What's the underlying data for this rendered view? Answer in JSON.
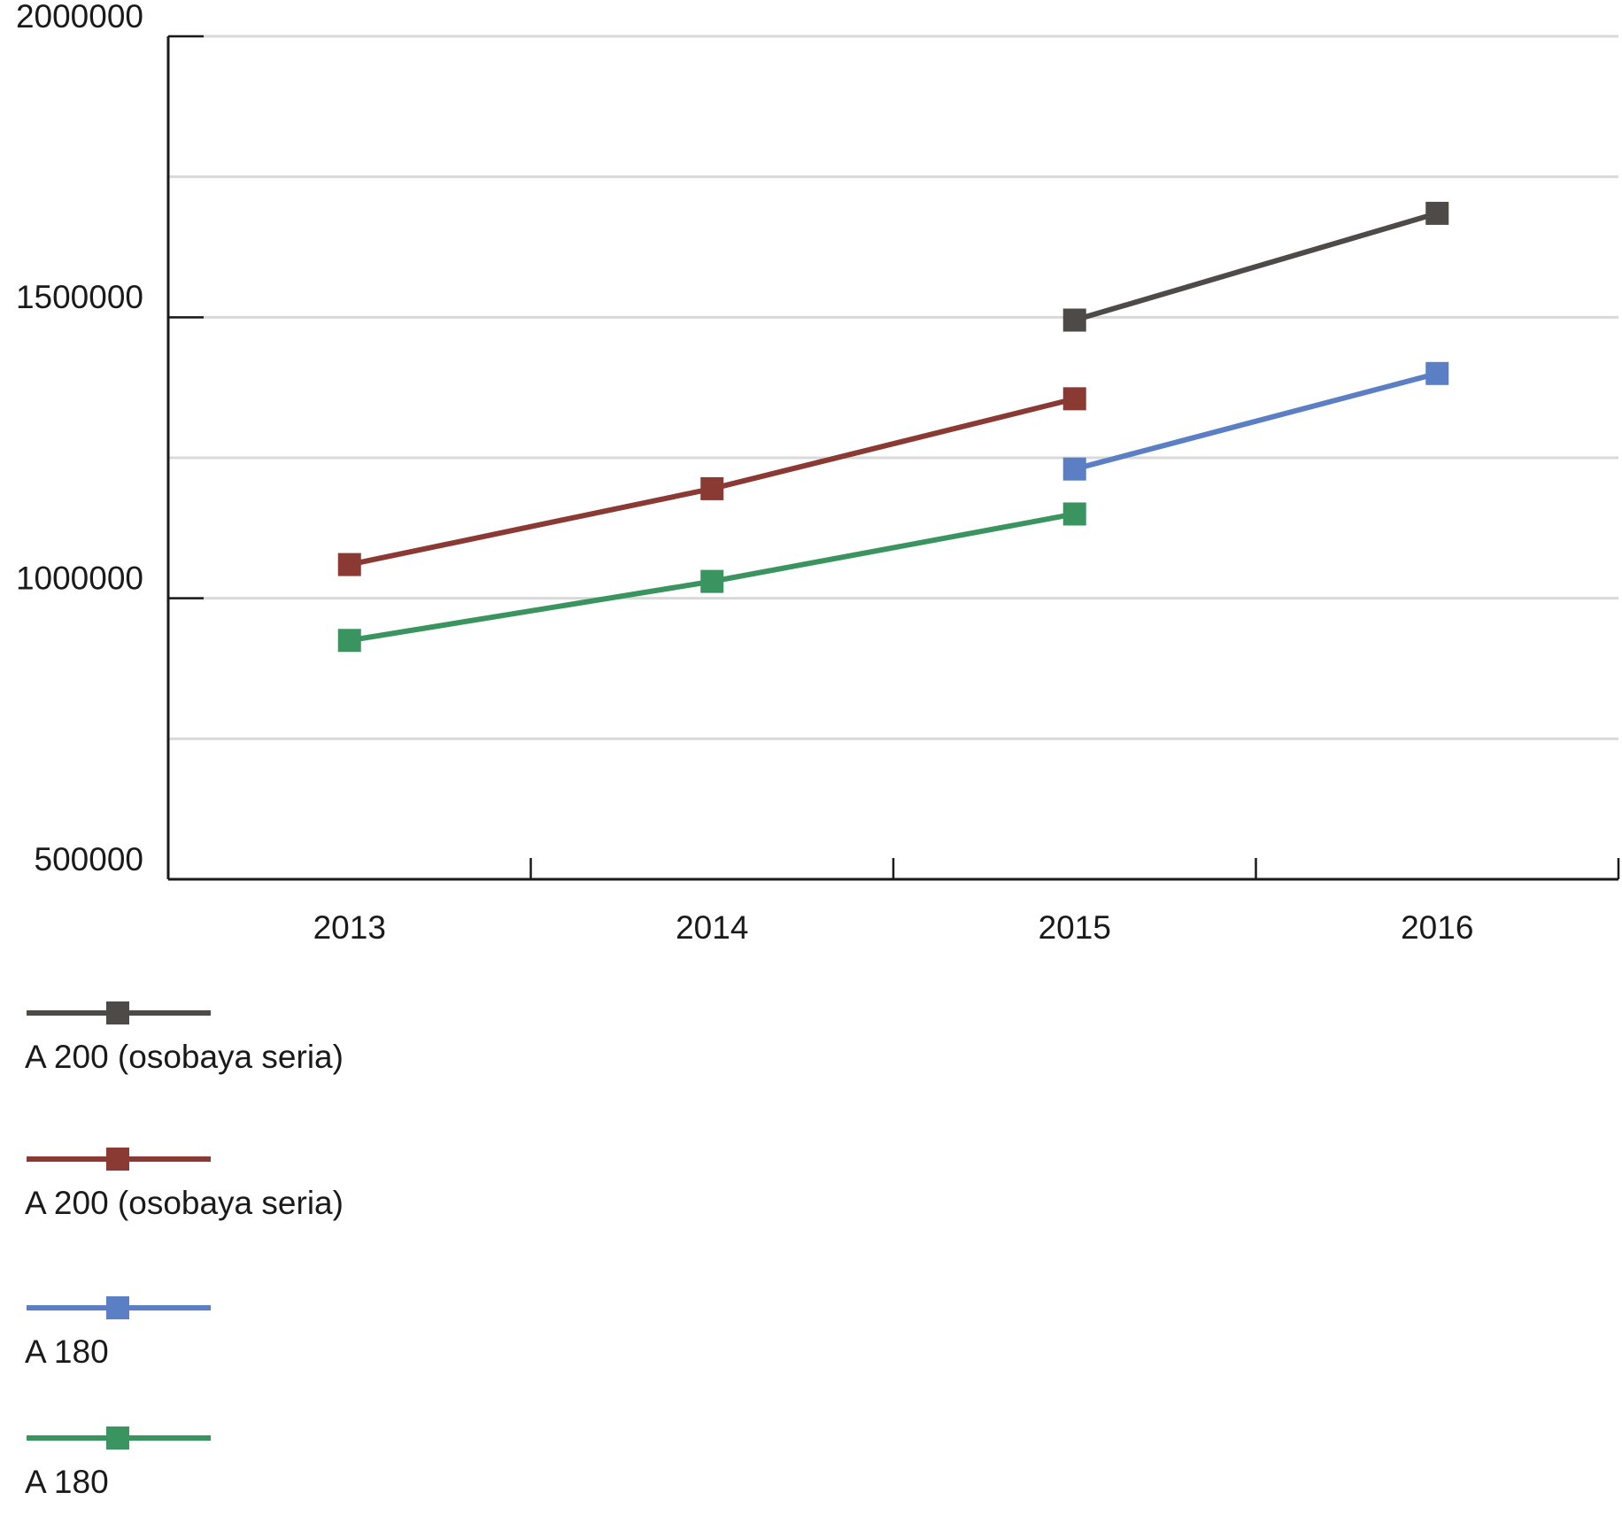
{
  "chart_data": {
    "type": "line",
    "categories": [
      "2013",
      "2014",
      "2015",
      "2016"
    ],
    "series": [
      {
        "name": "A 200 (osobaya seria)",
        "color": "#4d4a47",
        "values": [
          null,
          null,
          1495000,
          1685000
        ]
      },
      {
        "name": "A 200 (osobaya seria)",
        "color": "#8b3a33",
        "values": [
          1060000,
          1195000,
          1355000,
          null
        ]
      },
      {
        "name": "A 180",
        "color": "#5b7fc4",
        "values": [
          null,
          null,
          1230000,
          1400000
        ]
      },
      {
        "name": "A 180",
        "color": "#3a9460",
        "values": [
          925000,
          1030000,
          1150000,
          null
        ]
      }
    ],
    "ylim": [
      500000,
      2000000
    ],
    "yticks": [
      500000,
      1000000,
      1500000,
      2000000
    ],
    "minor_yticks": [
      750000,
      1250000,
      1750000
    ],
    "grid": true,
    "legend": "bottom"
  }
}
